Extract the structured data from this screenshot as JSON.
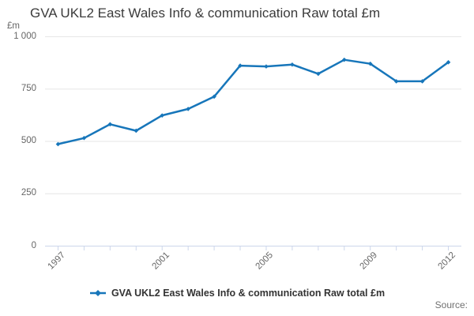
{
  "title": "GVA UKL2 East Wales Info & communication Raw total £m",
  "colors": {
    "line": "#1776ba",
    "grid": "#e6e6e6",
    "axis": "#ccd6eb",
    "title_text": "#3b3b3b",
    "tick_text": "#666666",
    "legend_text": "#333333",
    "source_text": "#707070"
  },
  "y_axis": {
    "unit_label": "£m",
    "ticks": [
      "1 000",
      "750",
      "500",
      "250",
      "0"
    ],
    "tick_values": [
      1000,
      750,
      500,
      250,
      0
    ]
  },
  "x_axis": {
    "labels": [
      "1997",
      "2001",
      "2005",
      "2009",
      "2012"
    ],
    "label_indices": [
      0,
      4,
      8,
      12,
      15
    ]
  },
  "legend": {
    "label": "GVA UKL2 East Wales Info & communication Raw total £m"
  },
  "source_label": "Source:",
  "chart_data": {
    "type": "line",
    "title": "GVA UKL2 East Wales Info & communication Raw total £m",
    "x": [
      1997,
      1998,
      1999,
      2000,
      2001,
      2002,
      2003,
      2004,
      2005,
      2006,
      2007,
      2008,
      2009,
      2010,
      2011,
      2012
    ],
    "series": [
      {
        "name": "GVA UKL2 East Wales Info & communication Raw total £m",
        "values": [
          487,
          516,
          582,
          551,
          624,
          655,
          714,
          862,
          858,
          867,
          823,
          890,
          871,
          787,
          787,
          878
        ]
      }
    ],
    "xlabel": "",
    "ylabel": "£m",
    "ylim": [
      0,
      1000
    ],
    "grid": "horizontal-only",
    "legend_position": "bottom-center",
    "marker": "diamond"
  }
}
